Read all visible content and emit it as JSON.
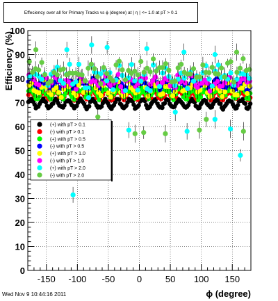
{
  "header": {
    "title_prefix": "Effeciency over all for Primary Tracks vs",
    "title_phi": "ϕ",
    "title_mid": "(degree) at |",
    "title_eta": "η",
    "title_suffix": "| <= 1.0 at pT > 0.1"
  },
  "footer": {
    "timestamp": "Wed Nov  9 10:44:16 2011"
  },
  "chart_data": {
    "type": "scatter",
    "xlabel_symbol": "ϕ",
    "xlabel": "(degree)",
    "ylabel": "Efficiency (%)",
    "xlim": [
      -180,
      180
    ],
    "ylim": [
      0,
      100
    ],
    "xticks": [
      -150,
      -100,
      -50,
      0,
      50,
      100,
      150
    ],
    "yticks": [
      0,
      10,
      20,
      30,
      40,
      50,
      60,
      70,
      80,
      90,
      100
    ],
    "grid": true,
    "legend_position": "middle-left",
    "series": [
      {
        "name": "(+) with pT > 0.1",
        "color": "#000000",
        "level": 69.5,
        "amp": 1.8,
        "spread": 0.6,
        "n": 180
      },
      {
        "name": "(-) with pT > 0.1",
        "color": "#ff0000",
        "level": 73.0,
        "amp": 1.6,
        "spread": 0.6,
        "n": 180
      },
      {
        "name": "(+) with pT > 0.5",
        "color": "#00ff00",
        "level": 74.0,
        "amp": 1.8,
        "spread": 1.2,
        "n": 180
      },
      {
        "name": "(-) with pT > 0.5",
        "color": "#0000ff",
        "level": 77.5,
        "amp": 1.6,
        "spread": 1.2,
        "n": 180
      },
      {
        "name": "(+) with pT > 1.0",
        "color": "#ffff00",
        "level": 76.0,
        "amp": 2.0,
        "spread": 2.0,
        "n": 90
      },
      {
        "name": "(-) with pT > 1.0",
        "color": "#ff00ff",
        "level": 78.5,
        "amp": 2.0,
        "spread": 2.0,
        "n": 90
      },
      {
        "name": "(+) with pT > 2.0",
        "color": "#00ffff",
        "level": 80.5,
        "amp": 2.5,
        "spread": 4.0,
        "n": 72
      },
      {
        "name": "(-) with pT > 2.0",
        "color": "#66cc44",
        "level": 83.0,
        "amp": 2.5,
        "spread": 3.5,
        "n": 72
      }
    ],
    "outliers": [
      {
        "series": 6,
        "x": -107,
        "y": 31.5
      },
      {
        "series": 6,
        "x": 163,
        "y": 48
      },
      {
        "series": 7,
        "x": -103,
        "y": 46
      },
      {
        "series": 7,
        "x": -47,
        "y": 54
      },
      {
        "series": 7,
        "x": -7,
        "y": 57
      },
      {
        "series": 7,
        "x": 7,
        "y": 57.5
      },
      {
        "series": 7,
        "x": 42,
        "y": 57
      },
      {
        "series": 7,
        "x": 97,
        "y": 58.5
      },
      {
        "series": 7,
        "x": 168,
        "y": 58
      },
      {
        "series": 7,
        "x": -67,
        "y": 64
      },
      {
        "series": 6,
        "x": -17,
        "y": 58.5
      },
      {
        "series": 6,
        "x": 77,
        "y": 58
      },
      {
        "series": 6,
        "x": 147,
        "y": 59
      },
      {
        "series": 6,
        "x": 122,
        "y": 63
      },
      {
        "series": 6,
        "x": -82,
        "y": 72
      },
      {
        "series": 6,
        "x": 58,
        "y": 66
      },
      {
        "series": 7,
        "x": 108,
        "y": 63
      },
      {
        "series": 6,
        "x": -117,
        "y": 92
      },
      {
        "series": 6,
        "x": -77,
        "y": 94
      },
      {
        "series": 6,
        "x": -52,
        "y": 93
      },
      {
        "series": 6,
        "x": 12,
        "y": 92.5
      },
      {
        "series": 6,
        "x": 72,
        "y": 91
      },
      {
        "series": 6,
        "x": 122,
        "y": 90
      },
      {
        "series": 7,
        "x": -167,
        "y": 92
      },
      {
        "series": 7,
        "x": 157,
        "y": 91
      }
    ]
  }
}
